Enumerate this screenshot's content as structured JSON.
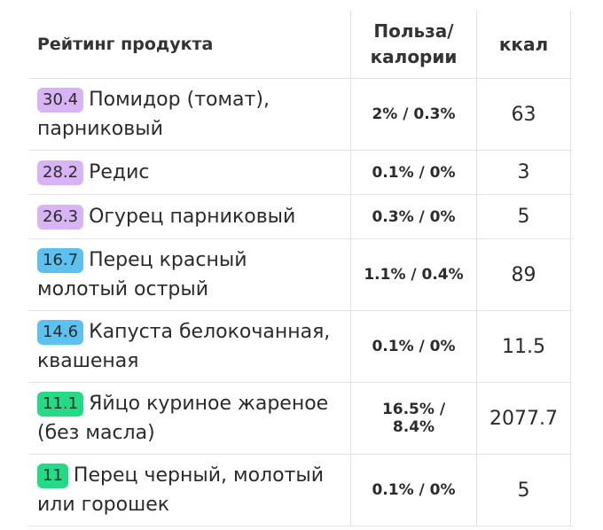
{
  "header": {
    "col_product": "Рейтинг продукта",
    "col_ratio_line1": "Польза/",
    "col_ratio_line2": "калории",
    "col_kcal": "ккал"
  },
  "rows": [
    {
      "rating": "30.4",
      "badge_color": "#d8b4f5",
      "name": "Помидор (томат), парниковый",
      "ratio": "2% / 0.3%",
      "kcal": "63"
    },
    {
      "rating": "28.2",
      "badge_color": "#d8b4f5",
      "name": "Редис",
      "ratio": "0.1% / 0%",
      "kcal": "3"
    },
    {
      "rating": "26.3",
      "badge_color": "#d8b4f5",
      "name": "Огурец парниковый",
      "ratio": "0.3% / 0%",
      "kcal": "5"
    },
    {
      "rating": "16.7",
      "badge_color": "#5cc1ee",
      "name": "Перец красный молотый острый",
      "ratio": "1.1% / 0.4%",
      "kcal": "89"
    },
    {
      "rating": "14.6",
      "badge_color": "#5cc1ee",
      "name": "Капуста белокочанная, квашеная",
      "ratio": "0.1% / 0%",
      "kcal": "11.5"
    },
    {
      "rating": "11.1",
      "badge_color": "#22dc85",
      "name": "Яйцо куриное жареное (без масла)",
      "ratio": "16.5% / 8.4%",
      "kcal": "2077.7"
    },
    {
      "rating": "11",
      "badge_color": "#22dc85",
      "name": "Перец черный, молотый или горошек",
      "ratio": "0.1% / 0%",
      "kcal": "5"
    }
  ]
}
